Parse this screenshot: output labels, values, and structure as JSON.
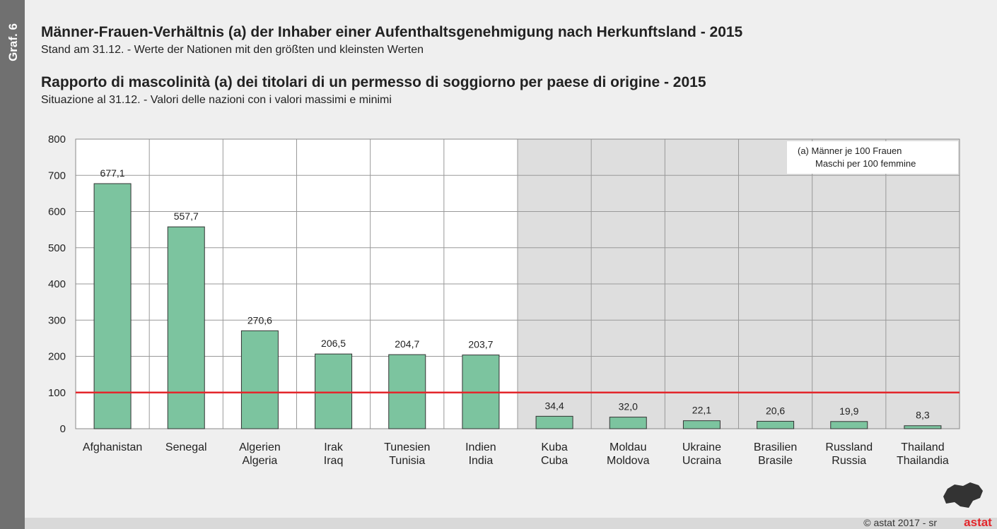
{
  "side_label": "Graf. 6",
  "footer": {
    "copyright": "© astat 2017 - sr",
    "logo": "astat"
  },
  "chart_data": {
    "type": "bar",
    "title": "Männer-Frauen-Verhältnis (a) der Inhaber einer Aufenthaltsgenehmigung nach Herkunftsland - 2015",
    "subtitle": "Stand am 31.12. - Werte der Nationen mit den größten und kleinsten Werten",
    "title_2": "Rapporto di mascolinità (a) dei titolari di un permesso di soggiorno per paese di origine - 2015",
    "subtitle_2": "Situazione al 31.12. - Valori delle nazioni con i valori massimi e minimi",
    "note": [
      "(a) Männer je 100 Frauen",
      "Maschi per 100 femmine"
    ],
    "categories": [
      [
        "Afghanistan"
      ],
      [
        "Senegal"
      ],
      [
        "Algerien",
        "Algeria"
      ],
      [
        "Irak",
        "Iraq"
      ],
      [
        "Tunesien",
        "Tunisia"
      ],
      [
        "Indien",
        "India"
      ],
      [
        "Kuba",
        "Cuba"
      ],
      [
        "Moldau",
        "Moldova"
      ],
      [
        "Ukraine",
        "Ucraina"
      ],
      [
        "Brasilien",
        "Brasile"
      ],
      [
        "Russland",
        "Russia"
      ],
      [
        "Thailand",
        "Thailandia"
      ]
    ],
    "values": [
      677.1,
      557.7,
      270.6,
      206.5,
      204.7,
      203.7,
      34.4,
      32.0,
      22.1,
      20.6,
      19.9,
      8.3
    ],
    "value_labels": [
      "677,1",
      "557,7",
      "270,6",
      "206,5",
      "204,7",
      "203,7",
      "34,4",
      "32,0",
      "22,1",
      "20,6",
      "19,9",
      "8,3"
    ],
    "color": "#7cc49f",
    "ylim": [
      0,
      800
    ],
    "yticks": [
      0,
      100,
      200,
      300,
      400,
      500,
      600,
      700,
      800
    ],
    "grid": true,
    "reference_line": {
      "value": 100,
      "color": "#e3262b"
    },
    "shaded_from": 6
  }
}
